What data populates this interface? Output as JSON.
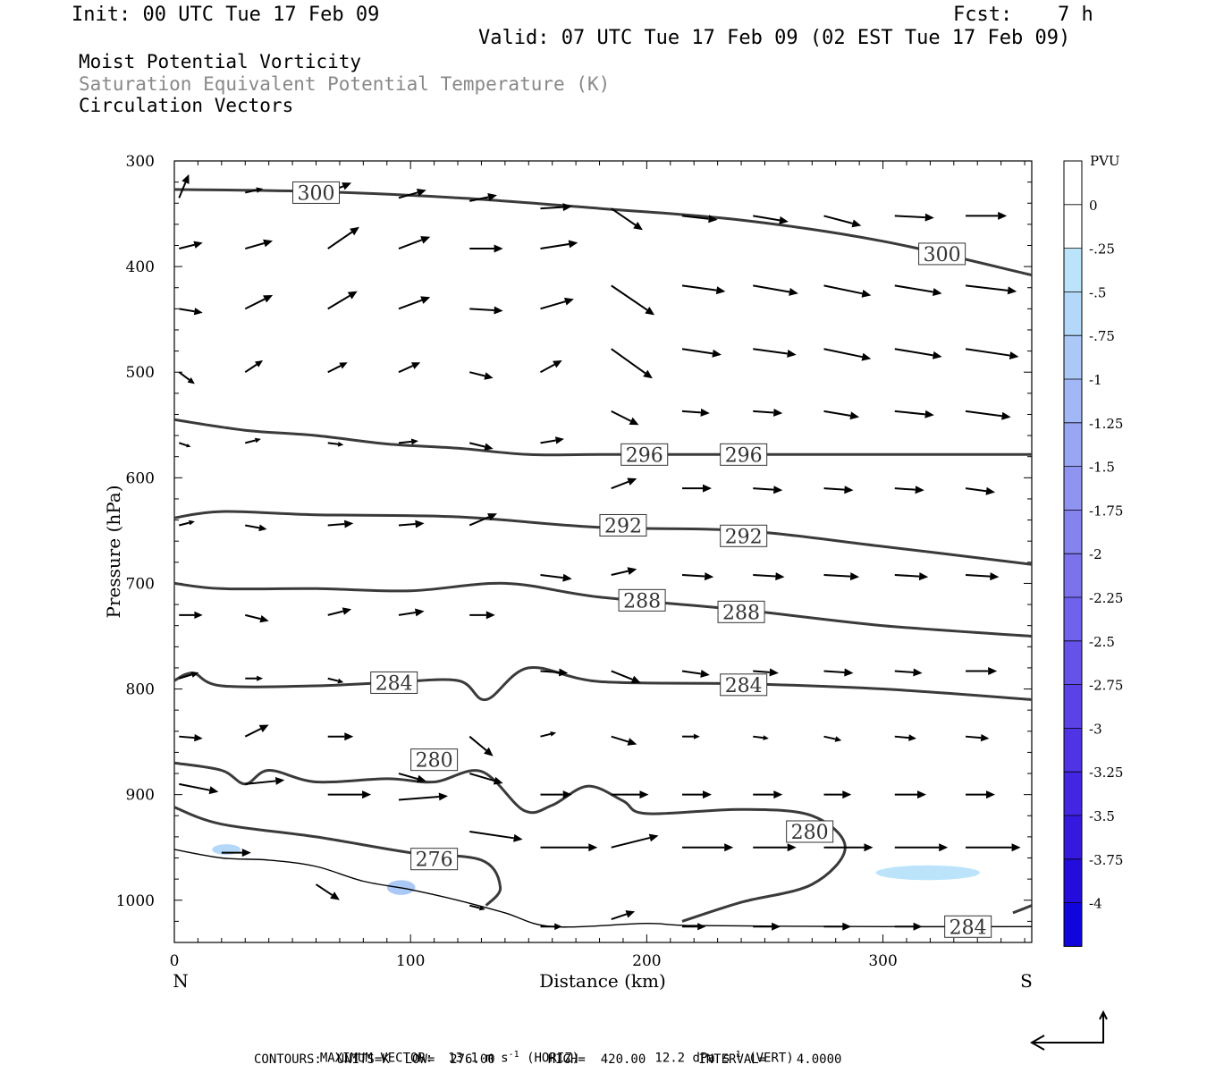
{
  "header": {
    "init": "Init: 00 UTC Tue 17 Feb 09",
    "fcst_label": "Fcst:",
    "fcst_value": "7 h",
    "valid": "Valid: 07 UTC Tue 17 Feb 09 (02 EST Tue 17 Feb 09)"
  },
  "legend_titles": [
    "Moist Potential Vorticity",
    "Saturation Equivalent Potential Temperature (K)",
    "Circulation Vectors"
  ],
  "colors": {
    "contour": "#3a3a3a",
    "vector": "#000000",
    "secondary_text": "#888888",
    "pv_fill": "#aad8f5"
  },
  "chart_data": {
    "type": "cross-section",
    "xlabel": "Distance (km)",
    "ylabel": "Pressure (hPa)",
    "xlim": [
      0,
      363
    ],
    "ylim": [
      1040,
      300
    ],
    "x_ticks": [
      "0",
      "100",
      "200",
      "300"
    ],
    "y_ticks": [
      "300",
      "400",
      "500",
      "600",
      "700",
      "800",
      "900",
      "1000"
    ],
    "left_end_label": "N",
    "right_end_label": "S",
    "contours": [
      {
        "label": "300",
        "label_positions": [
          [
            60,
            330
          ],
          [
            325,
            388
          ]
        ],
        "points": [
          [
            0,
            327
          ],
          [
            60,
            329
          ],
          [
            120,
            335
          ],
          [
            180,
            345
          ],
          [
            240,
            356
          ],
          [
            300,
            376
          ],
          [
            363,
            408
          ]
        ]
      },
      {
        "label": "296",
        "label_positions": [
          [
            199,
            578
          ],
          [
            241,
            578
          ]
        ],
        "points": [
          [
            0,
            545
          ],
          [
            30,
            555
          ],
          [
            60,
            560
          ],
          [
            90,
            568
          ],
          [
            120,
            572
          ],
          [
            150,
            578
          ],
          [
            180,
            578
          ],
          [
            240,
            578
          ],
          [
            300,
            578
          ],
          [
            363,
            578
          ]
        ]
      },
      {
        "label": "292",
        "label_positions": [
          [
            190,
            645
          ],
          [
            241,
            655
          ]
        ],
        "points": [
          [
            0,
            638
          ],
          [
            20,
            632
          ],
          [
            60,
            635
          ],
          [
            120,
            637
          ],
          [
            180,
            647
          ],
          [
            240,
            650
          ],
          [
            300,
            665
          ],
          [
            363,
            682
          ]
        ]
      },
      {
        "label": "288",
        "label_positions": [
          [
            198,
            716
          ],
          [
            240,
            727
          ]
        ],
        "points": [
          [
            0,
            700
          ],
          [
            20,
            705
          ],
          [
            60,
            705
          ],
          [
            100,
            707
          ],
          [
            140,
            700
          ],
          [
            180,
            713
          ],
          [
            240,
            725
          ],
          [
            300,
            740
          ],
          [
            363,
            750
          ]
        ]
      },
      {
        "label": "284",
        "label_positions": [
          [
            93,
            794
          ],
          [
            241,
            796
          ]
        ],
        "points": [
          [
            0,
            792
          ],
          [
            8,
            785
          ],
          [
            20,
            797
          ],
          [
            60,
            797
          ],
          [
            90,
            794
          ],
          [
            120,
            792
          ],
          [
            132,
            810
          ],
          [
            150,
            780
          ],
          [
            180,
            793
          ],
          [
            240,
            795
          ],
          [
            300,
            800
          ],
          [
            363,
            810
          ]
        ]
      },
      {
        "label": "280",
        "label_positions": [
          [
            110,
            867
          ],
          [
            269,
            935
          ]
        ],
        "points": [
          [
            0,
            870
          ],
          [
            20,
            877
          ],
          [
            30,
            890
          ],
          [
            40,
            877
          ],
          [
            60,
            888
          ],
          [
            90,
            885
          ],
          [
            110,
            888
          ],
          [
            130,
            878
          ],
          [
            148,
            915
          ],
          [
            160,
            910
          ],
          [
            175,
            892
          ],
          [
            190,
            906
          ],
          [
            200,
            918
          ],
          [
            240,
            914
          ],
          [
            270,
            920
          ],
          [
            284,
            950
          ],
          [
            270,
            985
          ],
          [
            240,
            1002
          ],
          [
            215,
            1020
          ]
        ]
      },
      {
        "label": "276",
        "label_positions": [
          [
            110,
            961
          ]
        ],
        "points": [
          [
            0,
            912
          ],
          [
            20,
            928
          ],
          [
            60,
            940
          ],
          [
            100,
            955
          ],
          [
            130,
            962
          ],
          [
            138,
            988
          ],
          [
            132,
            1005
          ]
        ]
      },
      {
        "label": "284",
        "label_positions": [
          [
            336,
            1025
          ]
        ],
        "points": [
          [
            355,
            1012
          ],
          [
            363,
            1005
          ]
        ]
      }
    ],
    "terrain": [
      [
        0,
        952
      ],
      [
        20,
        960
      ],
      [
        40,
        962
      ],
      [
        60,
        968
      ],
      [
        80,
        982
      ],
      [
        100,
        990
      ],
      [
        120,
        1000
      ],
      [
        140,
        1012
      ],
      [
        160,
        1025
      ],
      [
        200,
        1022
      ],
      [
        220,
        1024
      ],
      [
        300,
        1025
      ],
      [
        363,
        1025
      ]
    ],
    "pv_shaded": [
      {
        "value": -0.5,
        "center": [
          22,
          952
        ]
      },
      {
        "value": -0.75,
        "center": [
          96,
          988
        ]
      },
      {
        "value": -0.25,
        "center": [
          319,
          974
        ]
      }
    ],
    "vectors": [
      {
        "x": 2,
        "p": 335,
        "u": 5,
        "w": -12
      },
      {
        "x": 30,
        "p": 330,
        "u": 9,
        "w": -2
      },
      {
        "x": 65,
        "p": 330,
        "u": 12,
        "w": -5
      },
      {
        "x": 95,
        "p": 335,
        "u": 14,
        "w": -4
      },
      {
        "x": 125,
        "p": 338,
        "u": 14,
        "w": -3
      },
      {
        "x": 155,
        "p": 345,
        "u": 16,
        "w": -1
      },
      {
        "x": 185,
        "p": 345,
        "u": 16,
        "w": 11
      },
      {
        "x": 215,
        "p": 352,
        "u": 18,
        "w": 2
      },
      {
        "x": 245,
        "p": 352,
        "u": 18,
        "w": 3
      },
      {
        "x": 275,
        "p": 352,
        "u": 19,
        "w": 5
      },
      {
        "x": 305,
        "p": 352,
        "u": 20,
        "w": 1
      },
      {
        "x": 335,
        "p": 352,
        "u": 21,
        "w": 0
      },
      {
        "x": 2,
        "p": 383,
        "u": 12,
        "w": -3
      },
      {
        "x": 30,
        "p": 383,
        "u": 14,
        "w": -4
      },
      {
        "x": 65,
        "p": 383,
        "u": 16,
        "w": -11
      },
      {
        "x": 95,
        "p": 383,
        "u": 16,
        "w": -6
      },
      {
        "x": 125,
        "p": 383,
        "u": 17,
        "w": 0
      },
      {
        "x": 155,
        "p": 383,
        "u": 19,
        "w": -3
      },
      {
        "x": 185,
        "p": 418,
        "u": 22,
        "w": 15
      },
      {
        "x": 215,
        "p": 418,
        "u": 22,
        "w": 3
      },
      {
        "x": 245,
        "p": 418,
        "u": 23,
        "w": 4
      },
      {
        "x": 275,
        "p": 418,
        "u": 24,
        "w": 5
      },
      {
        "x": 305,
        "p": 418,
        "u": 24,
        "w": 4
      },
      {
        "x": 335,
        "p": 418,
        "u": 26,
        "w": 3
      },
      {
        "x": 2,
        "p": 440,
        "u": 12,
        "w": 2
      },
      {
        "x": 30,
        "p": 440,
        "u": 14,
        "w": -7
      },
      {
        "x": 65,
        "p": 440,
        "u": 15,
        "w": -9
      },
      {
        "x": 95,
        "p": 440,
        "u": 16,
        "w": -6
      },
      {
        "x": 125,
        "p": 440,
        "u": 17,
        "w": 1
      },
      {
        "x": 155,
        "p": 440,
        "u": 17,
        "w": -5
      },
      {
        "x": 185,
        "p": 478,
        "u": 21,
        "w": 15
      },
      {
        "x": 215,
        "p": 478,
        "u": 20,
        "w": 3
      },
      {
        "x": 245,
        "p": 478,
        "u": 22,
        "w": 3
      },
      {
        "x": 275,
        "p": 478,
        "u": 24,
        "w": 5
      },
      {
        "x": 305,
        "p": 478,
        "u": 24,
        "w": 4
      },
      {
        "x": 335,
        "p": 478,
        "u": 27,
        "w": 4
      },
      {
        "x": 2,
        "p": 500,
        "u": 8,
        "w": 6
      },
      {
        "x": 30,
        "p": 500,
        "u": 9,
        "w": -6
      },
      {
        "x": 65,
        "p": 500,
        "u": 10,
        "w": -5
      },
      {
        "x": 95,
        "p": 500,
        "u": 11,
        "w": -5
      },
      {
        "x": 125,
        "p": 500,
        "u": 12,
        "w": 3
      },
      {
        "x": 155,
        "p": 500,
        "u": 11,
        "w": -6
      },
      {
        "x": 185,
        "p": 537,
        "u": 14,
        "w": 7
      },
      {
        "x": 215,
        "p": 537,
        "u": 14,
        "w": 1
      },
      {
        "x": 245,
        "p": 537,
        "u": 15,
        "w": 1
      },
      {
        "x": 275,
        "p": 537,
        "u": 18,
        "w": 3
      },
      {
        "x": 305,
        "p": 537,
        "u": 20,
        "w": 2
      },
      {
        "x": 335,
        "p": 537,
        "u": 23,
        "w": 3
      },
      {
        "x": 2,
        "p": 567,
        "u": 6,
        "w": 2
      },
      {
        "x": 30,
        "p": 567,
        "u": 8,
        "w": -2
      },
      {
        "x": 65,
        "p": 567,
        "u": 8,
        "w": 1
      },
      {
        "x": 95,
        "p": 567,
        "u": 10,
        "w": -1
      },
      {
        "x": 125,
        "p": 567,
        "u": 12,
        "w": 3
      },
      {
        "x": 155,
        "p": 567,
        "u": 12,
        "w": -2
      },
      {
        "x": 185,
        "p": 610,
        "u": 13,
        "w": -5
      },
      {
        "x": 215,
        "p": 610,
        "u": 15,
        "w": 0
      },
      {
        "x": 245,
        "p": 610,
        "u": 15,
        "w": 1
      },
      {
        "x": 275,
        "p": 610,
        "u": 15,
        "w": 1
      },
      {
        "x": 305,
        "p": 610,
        "u": 15,
        "w": 1
      },
      {
        "x": 335,
        "p": 610,
        "u": 15,
        "w": 2
      },
      {
        "x": 2,
        "p": 645,
        "u": 8,
        "w": -2
      },
      {
        "x": 30,
        "p": 645,
        "u": 11,
        "w": 2
      },
      {
        "x": 65,
        "p": 645,
        "u": 13,
        "w": -1
      },
      {
        "x": 95,
        "p": 645,
        "u": 13,
        "w": -1
      },
      {
        "x": 125,
        "p": 645,
        "u": 14,
        "w": -6
      },
      {
        "x": 155,
        "p": 692,
        "u": 16,
        "w": 2
      },
      {
        "x": 185,
        "p": 692,
        "u": 13,
        "w": -3
      },
      {
        "x": 215,
        "p": 692,
        "u": 16,
        "w": 1
      },
      {
        "x": 245,
        "p": 692,
        "u": 16,
        "w": 1
      },
      {
        "x": 275,
        "p": 692,
        "u": 18,
        "w": 1
      },
      {
        "x": 305,
        "p": 692,
        "u": 17,
        "w": 1
      },
      {
        "x": 335,
        "p": 692,
        "u": 17,
        "w": 1
      },
      {
        "x": 2,
        "p": 730,
        "u": 12,
        "w": 0
      },
      {
        "x": 30,
        "p": 730,
        "u": 12,
        "w": 3
      },
      {
        "x": 65,
        "p": 730,
        "u": 12,
        "w": -3
      },
      {
        "x": 95,
        "p": 730,
        "u": 13,
        "w": -2
      },
      {
        "x": 125,
        "p": 730,
        "u": 13,
        "w": 0
      },
      {
        "x": 155,
        "p": 783,
        "u": 14,
        "w": 1
      },
      {
        "x": 185,
        "p": 783,
        "u": 15,
        "w": 6
      },
      {
        "x": 215,
        "p": 783,
        "u": 14,
        "w": 2
      },
      {
        "x": 245,
        "p": 783,
        "u": 13,
        "w": 1
      },
      {
        "x": 275,
        "p": 783,
        "u": 15,
        "w": 1
      },
      {
        "x": 305,
        "p": 783,
        "u": 14,
        "w": 1
      },
      {
        "x": 335,
        "p": 783,
        "u": 16,
        "w": 0
      },
      {
        "x": 2,
        "p": 790,
        "u": 10,
        "w": -3
      },
      {
        "x": 30,
        "p": 790,
        "u": 9,
        "w": 0
      },
      {
        "x": 65,
        "p": 790,
        "u": 8,
        "w": 2
      },
      {
        "x": 95,
        "p": 790,
        "u": 6,
        "w": 1
      },
      {
        "x": 125,
        "p": 845,
        "u": 12,
        "w": 10
      },
      {
        "x": 155,
        "p": 845,
        "u": 8,
        "w": -2
      },
      {
        "x": 185,
        "p": 845,
        "u": 13,
        "w": 4
      },
      {
        "x": 215,
        "p": 845,
        "u": 9,
        "w": 0
      },
      {
        "x": 245,
        "p": 845,
        "u": 8,
        "w": 1
      },
      {
        "x": 275,
        "p": 845,
        "u": 9,
        "w": 2
      },
      {
        "x": 305,
        "p": 845,
        "u": 11,
        "w": 1
      },
      {
        "x": 335,
        "p": 845,
        "u": 12,
        "w": 1
      },
      {
        "x": 2,
        "p": 845,
        "u": 12,
        "w": 1
      },
      {
        "x": 30,
        "p": 845,
        "u": 12,
        "w": -6
      },
      {
        "x": 65,
        "p": 845,
        "u": 13,
        "w": 0
      },
      {
        "x": 95,
        "p": 880,
        "u": 14,
        "w": 4
      },
      {
        "x": 125,
        "p": 880,
        "u": 17,
        "w": 5
      },
      {
        "x": 155,
        "p": 900,
        "u": 16,
        "w": 0
      },
      {
        "x": 185,
        "p": 900,
        "u": 19,
        "w": 0
      },
      {
        "x": 215,
        "p": 900,
        "u": 15,
        "w": 0
      },
      {
        "x": 245,
        "p": 900,
        "u": 15,
        "w": 0
      },
      {
        "x": 275,
        "p": 900,
        "u": 14,
        "w": 0
      },
      {
        "x": 305,
        "p": 900,
        "u": 16,
        "w": 0
      },
      {
        "x": 335,
        "p": 900,
        "u": 15,
        "w": 0
      },
      {
        "x": 2,
        "p": 890,
        "u": 20,
        "w": 4
      },
      {
        "x": 30,
        "p": 890,
        "u": 20,
        "w": -2
      },
      {
        "x": 65,
        "p": 900,
        "u": 22,
        "w": 0
      },
      {
        "x": 95,
        "p": 905,
        "u": 25,
        "w": -2
      },
      {
        "x": 125,
        "p": 935,
        "u": 27,
        "w": 4
      },
      {
        "x": 155,
        "p": 950,
        "u": 29,
        "w": 0
      },
      {
        "x": 185,
        "p": 950,
        "u": 24,
        "w": -6
      },
      {
        "x": 215,
        "p": 950,
        "u": 26,
        "w": 0
      },
      {
        "x": 245,
        "p": 950,
        "u": 22,
        "w": 0
      },
      {
        "x": 275,
        "p": 950,
        "u": 25,
        "w": 0
      },
      {
        "x": 305,
        "p": 950,
        "u": 27,
        "w": 0
      },
      {
        "x": 335,
        "p": 950,
        "u": 28,
        "w": 0
      },
      {
        "x": 20,
        "p": 955,
        "u": 15,
        "w": 0
      },
      {
        "x": 60,
        "p": 985,
        "u": 12,
        "w": 8
      },
      {
        "x": 125,
        "p": 1005,
        "u": 8,
        "w": 2
      },
      {
        "x": 155,
        "p": 1025,
        "u": 11,
        "w": 0
      },
      {
        "x": 185,
        "p": 1018,
        "u": 12,
        "w": -4
      },
      {
        "x": 215,
        "p": 1025,
        "u": 12,
        "w": 0
      },
      {
        "x": 245,
        "p": 1025,
        "u": 14,
        "w": 0
      },
      {
        "x": 275,
        "p": 1025,
        "u": 14,
        "w": 0
      },
      {
        "x": 305,
        "p": 1025,
        "u": 14,
        "w": 0
      },
      {
        "x": 335,
        "p": 1025,
        "u": 13,
        "w": 0
      }
    ]
  },
  "colorbar": {
    "unit": "PVU",
    "labels": [
      "0",
      "-.25",
      "-.5",
      "-.75",
      "-1",
      "-1.25",
      "-1.5",
      "-1.75",
      "-2",
      "-2.25",
      "-2.5",
      "-2.75",
      "-3",
      "-3.25",
      "-3.5",
      "-3.75",
      "-4"
    ],
    "colors": [
      "#ffffff",
      "#ffffff",
      "#bbe4fa",
      "#b3d8f9",
      "#abc8f7",
      "#a2b7f5",
      "#99a6f3",
      "#8f94f0",
      "#8583ee",
      "#7b72ec",
      "#7062ea",
      "#6552e8",
      "#5a42e6",
      "#4e34e4",
      "#4226e2",
      "#3519df",
      "#240cdc",
      "#1005dc"
    ]
  },
  "footer": {
    "line1_label": "MAXIMUM VECTOR:",
    "line1_horiz_value": "13.1 m s",
    "line1_horiz_exp": "-1",
    "line1_horiz_tag": "(HORIZ)",
    "line1_vert_value": "12.2 dPa s",
    "line1_vert_exp": "-1",
    "line1_vert_tag": "(VERT)",
    "line2": "CONTOURS:  UNITS=K  LOW=  276.00       HIGH=  420.00       INTERVAL=    4.0000"
  }
}
